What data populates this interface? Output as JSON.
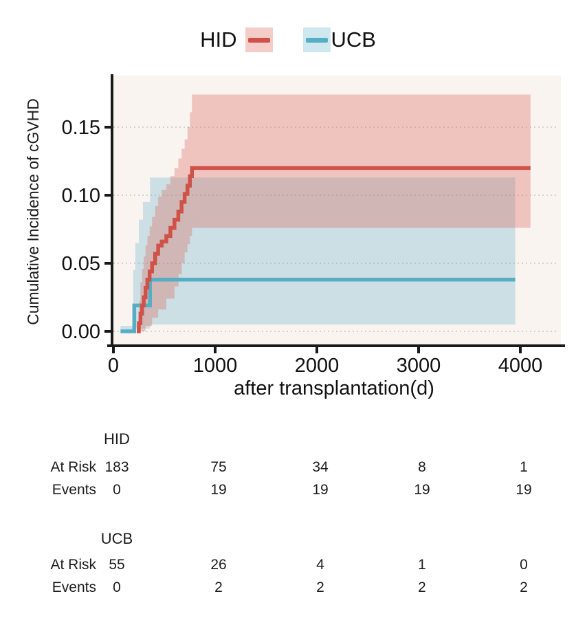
{
  "legend": {
    "items": [
      {
        "label": "HID",
        "line_color": "#cf5248",
        "band_color": "rgba(222,96,85,0.32)"
      },
      {
        "label": "UCB",
        "line_color": "#56aec5",
        "band_color": "rgba(95,176,200,0.30)"
      }
    ]
  },
  "chart_data": {
    "type": "line",
    "subtype": "cumulative-incidence-step-curves-with-confidence-bands",
    "title": "",
    "xlabel": "after transplantation(d)",
    "ylabel": "Cumulative Incidence of cGVHD",
    "x_ticks": [
      0,
      1000,
      2000,
      3000,
      4000
    ],
    "x_tick_labels": [
      "0",
      "1000",
      "2000",
      "3000",
      "4000"
    ],
    "y_ticks": [
      0,
      0.05,
      0.1,
      0.15
    ],
    "y_tick_labels": [
      "0.00",
      "0.05",
      "0.10",
      "0.15"
    ],
    "xlim": [
      0,
      4400
    ],
    "ylim": [
      -0.01,
      0.19
    ],
    "grid": "horizontal dotted",
    "legend_position": "top",
    "panel_background": "#faf4f1",
    "grid_color": "#ccc3c1",
    "axis_color": "#1a1a1a",
    "series": [
      {
        "name": "UCB",
        "color": "#56aec5",
        "band_color": "rgba(95,176,200,0.30)",
        "end_day": 3950,
        "final_value": 0.038,
        "steps": [
          [
            70,
            0
          ],
          [
            205,
            0.019
          ],
          [
            360,
            0.038
          ]
        ],
        "ci_upper": [
          [
            70,
            0.004
          ],
          [
            195,
            0.045
          ],
          [
            215,
            0.065
          ],
          [
            250,
            0.082
          ],
          [
            290,
            0.095
          ],
          [
            360,
            0.113
          ]
        ],
        "ci_lower": [
          [
            70,
            0
          ],
          [
            205,
            0.002
          ],
          [
            360,
            0.005
          ]
        ]
      },
      {
        "name": "HID",
        "color": "#cf5248",
        "band_color": "rgba(222,96,85,0.32)",
        "end_day": 4100,
        "final_value": 0.12,
        "steps": [
          [
            230,
            0
          ],
          [
            250,
            0.006
          ],
          [
            266,
            0.013
          ],
          [
            282,
            0.019
          ],
          [
            298,
            0.025
          ],
          [
            316,
            0.032
          ],
          [
            334,
            0.038
          ],
          [
            356,
            0.044
          ],
          [
            380,
            0.05
          ],
          [
            410,
            0.057
          ],
          [
            440,
            0.063
          ],
          [
            475,
            0.066
          ],
          [
            520,
            0.07
          ],
          [
            560,
            0.076
          ],
          [
            600,
            0.082
          ],
          [
            638,
            0.088
          ],
          [
            670,
            0.095
          ],
          [
            700,
            0.101
          ],
          [
            728,
            0.107
          ],
          [
            752,
            0.114
          ],
          [
            772,
            0.12
          ]
        ],
        "ci_upper": [
          [
            250,
            0.022
          ],
          [
            266,
            0.036
          ],
          [
            282,
            0.046
          ],
          [
            298,
            0.055
          ],
          [
            316,
            0.063
          ],
          [
            334,
            0.07
          ],
          [
            356,
            0.077
          ],
          [
            380,
            0.084
          ],
          [
            410,
            0.092
          ],
          [
            440,
            0.099
          ],
          [
            475,
            0.104
          ],
          [
            520,
            0.108
          ],
          [
            560,
            0.114
          ],
          [
            600,
            0.12
          ],
          [
            638,
            0.127
          ],
          [
            670,
            0.134
          ],
          [
            700,
            0.141
          ],
          [
            728,
            0.15
          ],
          [
            752,
            0.161
          ],
          [
            772,
            0.174
          ]
        ],
        "ci_lower": [
          [
            250,
            0
          ],
          [
            316,
            0.004
          ],
          [
            380,
            0.01
          ],
          [
            440,
            0.016
          ],
          [
            520,
            0.024
          ],
          [
            600,
            0.033
          ],
          [
            640,
            0.042
          ],
          [
            672,
            0.05
          ],
          [
            700,
            0.058
          ],
          [
            728,
            0.064
          ],
          [
            752,
            0.07
          ],
          [
            772,
            0.076
          ]
        ]
      }
    ]
  },
  "risk_table": {
    "row_labels": {
      "at_risk": "At Risk",
      "events": "Events"
    },
    "time_points": [
      0,
      1000,
      2000,
      3000,
      4000
    ],
    "groups": [
      {
        "name": "HID",
        "at_risk": [
          "183",
          "75",
          "34",
          "8",
          "1"
        ],
        "events": [
          "0",
          "19",
          "19",
          "19",
          "19"
        ]
      },
      {
        "name": "UCB",
        "at_risk": [
          "55",
          "26",
          "4",
          "1",
          "0"
        ],
        "events": [
          "0",
          "2",
          "2",
          "2",
          "2"
        ]
      }
    ]
  }
}
